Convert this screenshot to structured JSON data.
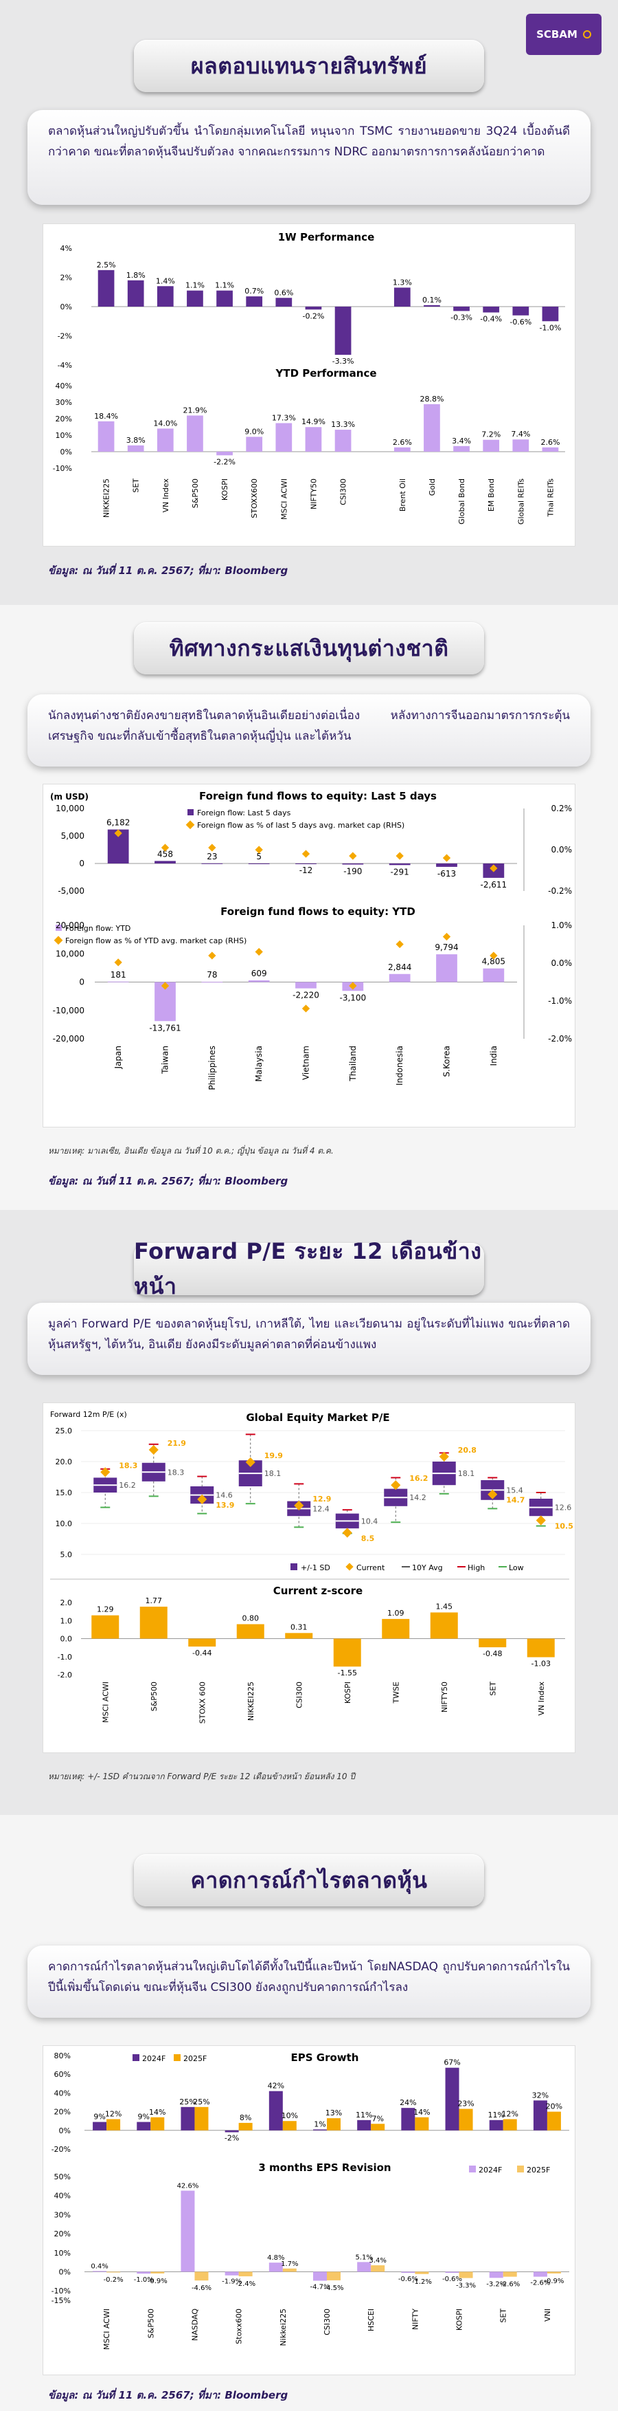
{
  "brand": {
    "logo_text": "SCBAM"
  },
  "colors": {
    "purple": "#5c2d91",
    "light_purple": "#c8a2f0",
    "orange": "#f5a800",
    "green": "#4caf50",
    "red": "#d0021b"
  },
  "sec1": {
    "title": "ผลตอบแทนรายสินทรัพย์",
    "summary": "ตลาดหุ้นส่วนใหญ่ปรับตัวขึ้น นำโดยกลุ่มเทคโนโลยี หนุนจาก TSMC รายงานยอดขาย 3Q24 เบื้องต้นดีกว่าคาด ขณะที่ตลาดหุ้นจีนปรับตัวลง จากคณะกรรมการ NDRC ออกมาตรการการคลังน้อยกว่าคาด",
    "source": "ข้อมูล: ณ วันที่ 11 ต.ค. 2567; ที่มา: Bloomberg"
  },
  "sec2": {
    "title": "ทิศทางกระแสเงินทุนต่างชาติ",
    "summary": "นักลงทุนต่างชาติยังคงขายสุทธิในตลาดหุ้นอินเดียอย่างต่อเนื่อง หลังทางการจีนออกมาตรการกระตุ้นเศรษฐกิจ ขณะที่กลับเข้าซื้อสุทธิในตลาดหุ้นญี่ปุ่น และไต้หวัน",
    "note": "หมายเหตุ: มาเลเซีย, อินเดีย ข้อมูล ณ วันที่ 10 ต.ค.; ญี่ปุ่น ข้อมูล ณ วันที่ 4 ต.ค.",
    "source": "ข้อมูล: ณ วันที่ 11 ต.ค. 2567; ที่มา: Bloomberg"
  },
  "sec3": {
    "title": "Forward P/E ระยะ 12 เดือนข้างหน้า",
    "summary": "มูลค่า Forward P/E ของตลาดหุ้นยุโรป, เกาหลีใต้, ไทย และเวียดนาม อยู่ในระดับที่ไม่แพง ขณะที่ตลาดหุ้นสหรัฐฯ, ไต้หวัน, อินเดีย ยังคงมีระดับมูลค่าตลาดที่ค่อนข้างแพง",
    "note": "หมายเหตุ: +/- 1SD คำนวณจาก Forward P/E ระยะ 12 เดือนข้างหน้า ย้อนหลัง 10 ปี"
  },
  "sec4": {
    "title": "คาดการณ์กำไรตลาดหุ้น",
    "summary": "คาดการณ์กำไรตลาดหุ้นส่วนใหญ่เติบโตได้ดีทั้งในปีนี้และปีหน้า โดยNASDAQ ถูกปรับคาดการณ์กำไรในปีนี้เพิ่มขึ้นโดดเด่น ขณะที่หุ้นจีน CSI300 ยังคงถูกปรับคาดการณ์กำไรลง",
    "source": "ข้อมูล: ณ วันที่ 11 ต.ค. 2567; ที่มา: Bloomberg"
  },
  "chart_data": [
    {
      "id": "perf",
      "type": "bar",
      "title": "1W Performance",
      "title2": "YTD Performance",
      "categories": [
        "NIKKEI225",
        "SET",
        "VN Index",
        "S&P500",
        "KOSPI",
        "STOXX600",
        "MSCI ACWI",
        "NIFTY50",
        "CSI300",
        "",
        "Brent Oil",
        "Gold",
        "Global Bond",
        "EM Bond",
        "Global REITs",
        "Thai REITs"
      ],
      "w1": [
        2.5,
        1.8,
        1.4,
        1.1,
        1.1,
        0.7,
        0.6,
        -0.2,
        -3.3,
        null,
        1.3,
        0.1,
        -0.3,
        -0.4,
        -0.6,
        -1.0
      ],
      "ytd": [
        18.4,
        3.8,
        14.0,
        21.9,
        -2.2,
        9.0,
        17.3,
        14.9,
        13.3,
        null,
        2.6,
        28.8,
        3.4,
        7.2,
        7.4,
        2.6
      ],
      "w1_ticks": [
        "4%",
        "2%",
        "0%",
        "-2%",
        "-4%"
      ],
      "ytd_ticks": [
        "40%",
        "30%",
        "20%",
        "10%",
        "0%",
        "-10%"
      ]
    },
    {
      "id": "flows",
      "type": "bar",
      "title": "Foreign fund flows to equity: Last 5 days",
      "title2": "Foreign fund flows to equity: YTD",
      "unit": "(m USD)",
      "categories": [
        "Japan",
        "Taiwan",
        "Philippines",
        "Malaysia",
        "Vietnam",
        "Thailand",
        "Indonesia",
        "S.Korea",
        "India"
      ],
      "last5": [
        6182,
        458,
        23,
        5,
        -12,
        -190,
        -291,
        -613,
        -2611
      ],
      "last5_pct": [
        0.08,
        0.01,
        0.01,
        0.0,
        -0.02,
        -0.03,
        -0.03,
        -0.04,
        -0.09
      ],
      "ytd": [
        181,
        -13761,
        78,
        609,
        -2220,
        -3100,
        2844,
        9794,
        4805
      ],
      "ytd_pct": [
        0.02,
        -0.6,
        0.2,
        0.3,
        -1.2,
        -0.6,
        0.5,
        0.7,
        0.2
      ],
      "legend1": "Foreign flow: Last 5 days",
      "legend2": "Foreign flow as % of last 5 days avg. market cap (RHS)",
      "legend3": "Foreign flow: YTD",
      "legend4": "Foreign flow as % of YTD avg. market cap (RHS)",
      "y1_ticks": [
        "10,000",
        "5,000",
        "0",
        "-5,000"
      ],
      "r1_ticks": [
        "0.2%",
        "0.0%",
        "-0.2%"
      ],
      "y2_ticks": [
        "20,000",
        "10,000",
        "0",
        "-10,000",
        "-20,000"
      ],
      "r2_ticks": [
        "1.0%",
        "0.0%",
        "-1.0%",
        "-2.0%"
      ]
    },
    {
      "id": "pe",
      "type": "box",
      "title": "Global Equity Market P/E",
      "ylabel": "Forward 12m P/E (x)",
      "categories": [
        "MSCI ACWI",
        "S&P500",
        "STOXX 600",
        "NIKKEI225",
        "CSI300",
        "KOSPI",
        "TWSE",
        "NIFTY50",
        "SET",
        "VN Index"
      ],
      "avg10y": [
        16.2,
        18.3,
        14.6,
        18.1,
        12.4,
        10.4,
        14.2,
        18.1,
        15.4,
        12.6
      ],
      "current": [
        18.3,
        21.9,
        13.9,
        19.9,
        12.9,
        8.5,
        16.2,
        20.8,
        14.7,
        10.5
      ],
      "sd_lo": [
        15,
        16.8,
        13.2,
        16,
        11.2,
        9.2,
        12.8,
        16.2,
        13.8,
        11.2
      ],
      "sd_hi": [
        17.4,
        19.8,
        16,
        20.2,
        13.6,
        11.6,
        15.6,
        20,
        17,
        14
      ],
      "high": [
        18.8,
        22.8,
        17.6,
        24.4,
        16.4,
        12.2,
        17.4,
        21.4,
        17.4,
        15
      ],
      "low": [
        12.6,
        14.4,
        11.6,
        13.2,
        9.4,
        8.4,
        10.2,
        14.8,
        12.4,
        9.6
      ],
      "ticks": [
        "25.0",
        "20.0",
        "15.0",
        "10.0",
        "5.0"
      ],
      "legend": [
        "+/-1 SD",
        "Current",
        "10Y Avg",
        "High",
        "Low"
      ],
      "title2": "Current z-score",
      "z": [
        1.29,
        1.77,
        -0.44,
        0.8,
        0.31,
        -1.55,
        1.09,
        1.45,
        -0.48,
        -1.03
      ],
      "z_ticks": [
        "2.0",
        "1.0",
        "0.0",
        "-1.0",
        "-2.0"
      ]
    },
    {
      "id": "eps",
      "type": "bar",
      "title": "EPS Growth",
      "title2": "3 months EPS Revision",
      "categories": [
        "MSCI ACWI",
        "S&P500",
        "NASDAQ",
        "Stoxx600",
        "Nikkei225",
        "CSI300",
        "HSCEI",
        "NIFTY",
        "KOSPI",
        "SET",
        "VNI"
      ],
      "g2024": [
        9,
        9,
        25,
        -2,
        42,
        1,
        11,
        24,
        67,
        11,
        32
      ],
      "g2025": [
        12,
        14,
        25,
        8,
        10,
        13,
        7,
        14,
        23,
        12,
        20
      ],
      "r2024": [
        0.4,
        -1.0,
        42.6,
        -1.9,
        4.8,
        -4.7,
        5.1,
        -0.6,
        -0.6,
        -3.2,
        -2.6
      ],
      "r2025": [
        -0.2,
        -0.9,
        -4.6,
        -2.4,
        1.7,
        -4.5,
        3.4,
        -1.2,
        -3.3,
        -2.6,
        -0.9
      ],
      "legend": [
        "2024F",
        "2025F"
      ],
      "g_ticks": [
        "80%",
        "60%",
        "40%",
        "20%",
        "0%",
        "-20%"
      ],
      "r_ticks": [
        "50%",
        "40%",
        "30%",
        "20%",
        "10%",
        "0%",
        "-10%",
        "-15%"
      ]
    }
  ]
}
